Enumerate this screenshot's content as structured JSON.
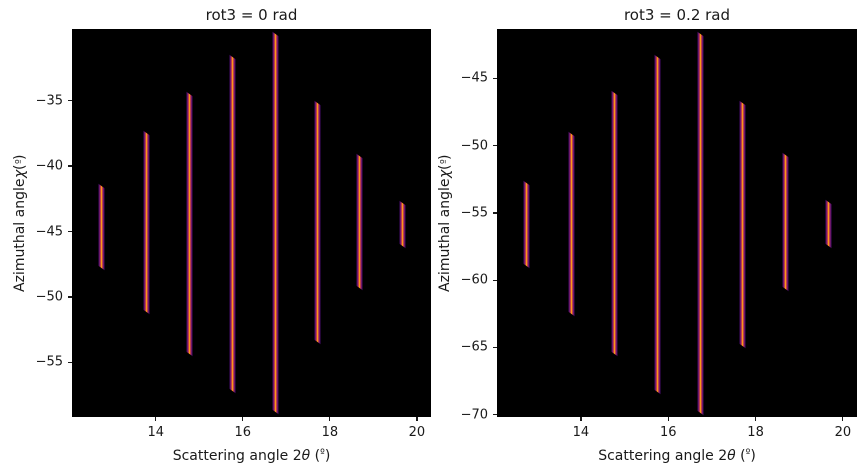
{
  "figure": {
    "background_color": "#ffffff",
    "plot_background_color": "#000000",
    "text_color": "#1a1a1a"
  },
  "line_profile_colors": [
    "#000004",
    "#4a0c6b",
    "#8e2468",
    "#cf4446",
    "#f98e09",
    "#fcf7a9"
  ],
  "chart_data": [
    {
      "type": "heatmap",
      "title": "rot3 = 0 rad",
      "xlabel": "Scattering angle 2θ (º)",
      "ylabel": "Azimuthal angle χ (º)",
      "xlim": [
        12.1,
        20.3
      ],
      "ylim": [
        -59.1,
        -29.6
      ],
      "xticks": [
        14,
        16,
        18,
        20
      ],
      "yticks": [
        -35,
        -40,
        -45,
        -50,
        -55
      ],
      "grid": false,
      "legend": null,
      "segments": [
        {
          "two_theta": 12.76,
          "chi_top": -41.5,
          "chi_bottom": -47.8
        },
        {
          "two_theta": 13.78,
          "chi_top": -37.5,
          "chi_bottom": -51.2
        },
        {
          "two_theta": 14.77,
          "chi_top": -34.5,
          "chi_bottom": -54.4
        },
        {
          "two_theta": 15.76,
          "chi_top": -31.7,
          "chi_bottom": -57.2
        },
        {
          "two_theta": 16.74,
          "chi_top": -29.9,
          "chi_bottom": -58.8
        },
        {
          "two_theta": 17.71,
          "chi_top": -35.2,
          "chi_bottom": -53.5
        },
        {
          "two_theta": 18.69,
          "chi_top": -39.2,
          "chi_bottom": -49.3
        },
        {
          "two_theta": 19.66,
          "chi_top": -42.8,
          "chi_bottom": -46.1
        }
      ]
    },
    {
      "type": "heatmap",
      "title": "rot3 = 0.2 rad",
      "xlabel": "Scattering angle 2θ (º)",
      "ylabel": "Azimuthal angle χ (º)",
      "xlim": [
        12.1,
        20.3
      ],
      "ylim": [
        -70.1,
        -41.4
      ],
      "xticks": [
        14,
        16,
        18,
        20
      ],
      "yticks": [
        -45,
        -50,
        -55,
        -60,
        -65,
        -70
      ],
      "grid": false,
      "legend": null,
      "segments": [
        {
          "two_theta": 12.76,
          "chi_top": -52.8,
          "chi_bottom": -59.0
        },
        {
          "two_theta": 13.78,
          "chi_top": -49.1,
          "chi_bottom": -62.5
        },
        {
          "two_theta": 14.77,
          "chi_top": -46.1,
          "chi_bottom": -65.5
        },
        {
          "two_theta": 15.76,
          "chi_top": -43.4,
          "chi_bottom": -68.3
        },
        {
          "two_theta": 16.74,
          "chi_top": -41.7,
          "chi_bottom": -69.9
        },
        {
          "two_theta": 17.71,
          "chi_top": -46.8,
          "chi_bottom": -64.9
        },
        {
          "two_theta": 18.69,
          "chi_top": -50.7,
          "chi_bottom": -60.7
        },
        {
          "two_theta": 19.66,
          "chi_top": -54.2,
          "chi_bottom": -57.5
        }
      ]
    }
  ]
}
